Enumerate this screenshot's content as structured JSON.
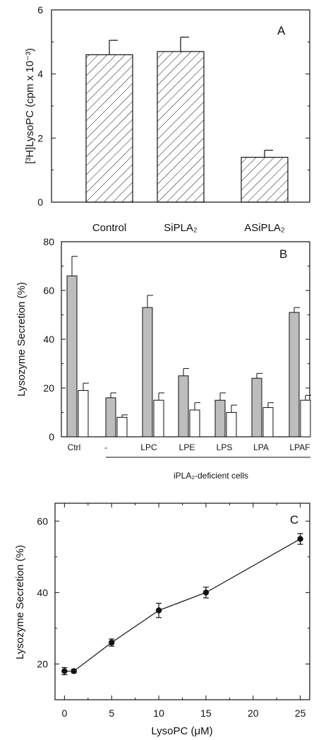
{
  "chart_data": [
    {
      "panel": "A",
      "type": "bar",
      "ylabel": "[³H]LysoPC (cpm x 10⁻³)",
      "ylim": [
        0,
        6
      ],
      "yticks": [
        "0",
        "2",
        "4",
        "6"
      ],
      "categories": [
        "Control",
        "SiPLA₂",
        "ASiPLA₂"
      ],
      "values": [
        4.6,
        4.7,
        1.4
      ],
      "errors": [
        0.45,
        0.45,
        0.22
      ],
      "fill": "hatched"
    },
    {
      "panel": "B",
      "type": "bar",
      "ylabel": "Lysozyme Secretion (%)",
      "ylim": [
        0,
        80
      ],
      "yticks": [
        "0",
        "20",
        "40",
        "60",
        "80"
      ],
      "categories": [
        "Ctrl",
        "-",
        "LPC",
        "LPE",
        "LPS",
        "LPA",
        "LPAF"
      ],
      "group_label": "iPLA₂-deficient cells",
      "series": [
        {
          "values": [
            66,
            16,
            53,
            25,
            15,
            24,
            51
          ],
          "errors": [
            8,
            2,
            5,
            3,
            3,
            2,
            2
          ],
          "color": "#bdbdbd"
        },
        {
          "values": [
            19,
            8,
            15,
            11,
            10,
            12,
            15
          ],
          "errors": [
            3,
            1,
            3,
            3,
            3,
            2,
            2
          ],
          "color": "#ffffff"
        }
      ]
    },
    {
      "panel": "C",
      "type": "line",
      "xlabel": "LysoPC (μM)",
      "ylabel": "Lysozyme Secretion (%)",
      "xlim": [
        -1,
        26
      ],
      "ylim": [
        10,
        65
      ],
      "xticks": [
        "0",
        "5",
        "10",
        "15",
        "20",
        "25"
      ],
      "yticks": [
        "20",
        "40",
        "60"
      ],
      "x": [
        0,
        1,
        5,
        10,
        15,
        25
      ],
      "y": [
        18,
        18,
        26,
        35,
        40,
        55
      ],
      "errors": [
        1,
        0.5,
        1,
        2,
        1.5,
        1.5
      ]
    }
  ]
}
